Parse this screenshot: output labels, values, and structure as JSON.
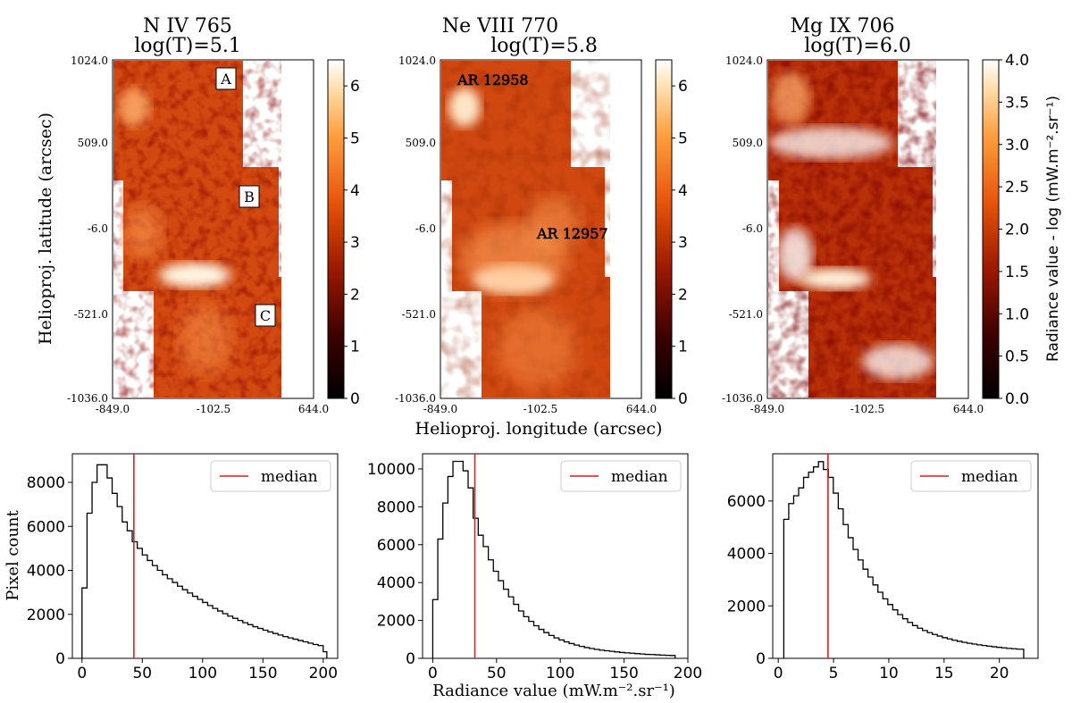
{
  "colorbar_label": "Radiance value - log (mW.m⁻².sr⁻¹)",
  "map_xlabel": "Helioproj. longitude (arcsec)",
  "map_ylabel": "Helioproj. latitude (arcsec)",
  "map_xticks": [
    "-849.0",
    "-102.5",
    "644.0"
  ],
  "map_yticks": [
    "1024.0",
    "509.0",
    "-6.0",
    "-521.0",
    "-1036.0"
  ],
  "hist_xlabel": "Radiance value (mW.m⁻².sr⁻¹)",
  "hist_ylabel": "Pixel count",
  "legend_label": "median",
  "colors": {
    "median_line": "#e41a1c",
    "hist_step": "#000000",
    "map_colormap": "gist_heat"
  },
  "panels": [
    {
      "title_line1": "N IV 765",
      "title_line2": "log(T)=5.1",
      "labels": [
        "A",
        "B",
        "C"
      ],
      "colorbar": {
        "ticks": [
          "0",
          "1",
          "2",
          "3",
          "4",
          "5",
          "6"
        ],
        "max": 6.5
      }
    },
    {
      "title_line1": "Ne VIII 770",
      "title_line2": "log(T)=5.8",
      "labels": [
        "AR 12958",
        "AR 12957"
      ],
      "colorbar": {
        "ticks": [
          "0",
          "1",
          "2",
          "3",
          "4",
          "5",
          "6"
        ],
        "max": 6.5
      }
    },
    {
      "title_line1": "Mg IX 706",
      "title_line2": "log(T)=6.0",
      "labels": [],
      "colorbar": {
        "ticks": [
          "0.0",
          "0.5",
          "1.0",
          "1.5",
          "2.0",
          "2.5",
          "3.0",
          "3.5",
          "4.0"
        ],
        "max": 4.0
      }
    }
  ],
  "chart_data": [
    {
      "type": "histogram",
      "title": "N IV 765",
      "xlabel": "",
      "ylabel": "Pixel count",
      "xlim": [
        -8,
        212
      ],
      "ylim": [
        0,
        9300
      ],
      "xticks": [
        0,
        50,
        100,
        150,
        200
      ],
      "yticks": [
        0,
        2000,
        4000,
        6000,
        8000
      ],
      "bin_edges": [
        0,
        4.167,
        8.333,
        12.5,
        16.667,
        20.833,
        25,
        29.167,
        33.333,
        37.5,
        41.667,
        45.833,
        50,
        54.167,
        58.333,
        62.5,
        66.667,
        70.833,
        75,
        79.167,
        83.333,
        87.5,
        91.667,
        95.833,
        100,
        104.167,
        108.333,
        112.5,
        116.667,
        120.833,
        125,
        129.167,
        133.333,
        137.5,
        141.667,
        145.833,
        150,
        154.167,
        158.333,
        162.5,
        166.667,
        170.833,
        175,
        179.167,
        183.333,
        187.5,
        191.667,
        195.833,
        200,
        203
      ],
      "counts": [
        3200,
        6600,
        8000,
        8800,
        8800,
        8200,
        7500,
        6900,
        6200,
        5800,
        5300,
        5000,
        4700,
        4450,
        4220,
        4000,
        3800,
        3620,
        3450,
        3280,
        3120,
        2970,
        2820,
        2680,
        2540,
        2400,
        2270,
        2150,
        2030,
        1920,
        1820,
        1720,
        1620,
        1530,
        1440,
        1360,
        1280,
        1200,
        1130,
        1060,
        990,
        930,
        870,
        810,
        750,
        690,
        630,
        580,
        300
      ],
      "median": 43,
      "legend": "median"
    },
    {
      "type": "histogram",
      "title": "Ne VIII 770",
      "xlabel": "Radiance value (mW.m⁻².sr⁻¹)",
      "ylabel": "",
      "xlim": [
        -8,
        200
      ],
      "ylim": [
        0,
        10800
      ],
      "xticks": [
        0,
        50,
        100,
        150,
        200
      ],
      "yticks": [
        0,
        2000,
        4000,
        6000,
        8000,
        10000
      ],
      "bin_edges": [
        0,
        3.96,
        7.92,
        11.88,
        15.84,
        19.8,
        23.76,
        27.72,
        31.68,
        35.64,
        39.6,
        43.56,
        47.52,
        51.48,
        55.44,
        59.4,
        63.36,
        67.32,
        71.28,
        75.24,
        79.2,
        83.16,
        87.12,
        91.08,
        95.04,
        99,
        102.96,
        106.92,
        110.88,
        114.84,
        118.8,
        122.76,
        126.72,
        130.68,
        134.64,
        138.6,
        142.56,
        146.52,
        150.48,
        154.44,
        158.4,
        162.36,
        166.32,
        170.28,
        174.24,
        178.2,
        182.16,
        186.12,
        190
      ],
      "counts": [
        3100,
        6300,
        8200,
        9600,
        10400,
        10400,
        9900,
        9000,
        7400,
        6500,
        5900,
        5200,
        4600,
        4100,
        3650,
        3250,
        2850,
        2500,
        2200,
        1950,
        1720,
        1530,
        1360,
        1210,
        1080,
        970,
        870,
        780,
        700,
        630,
        570,
        520,
        470,
        430,
        400,
        370,
        340,
        310,
        290,
        270,
        250,
        230,
        210,
        200,
        185,
        170,
        160,
        150
      ],
      "median": 33,
      "legend": "median"
    },
    {
      "type": "histogram",
      "title": "Mg IX 706",
      "xlabel": "",
      "ylabel": "",
      "xlim": [
        -0.5,
        23.5
      ],
      "ylim": [
        0,
        7800
      ],
      "xticks": [
        0,
        5,
        10,
        15,
        20
      ],
      "yticks": [
        0,
        2000,
        4000,
        6000
      ],
      "bin_edges": [
        0.5,
        0.948,
        1.396,
        1.844,
        2.292,
        2.74,
        3.188,
        3.636,
        4.084,
        4.532,
        4.98,
        5.428,
        5.876,
        6.324,
        6.772,
        7.22,
        7.668,
        8.116,
        8.564,
        9.012,
        9.46,
        9.908,
        10.356,
        10.804,
        11.252,
        11.7,
        12.148,
        12.596,
        13.044,
        13.492,
        13.94,
        14.388,
        14.836,
        15.284,
        15.732,
        16.18,
        16.628,
        17.076,
        17.524,
        17.972,
        18.42,
        18.868,
        19.316,
        19.764,
        20.212,
        20.66,
        21.108,
        21.556,
        22.2
      ],
      "counts": [
        5300,
        5900,
        6200,
        6500,
        6900,
        7100,
        7300,
        7500,
        7200,
        6900,
        6300,
        5700,
        5100,
        4600,
        4150,
        3750,
        3400,
        3100,
        2800,
        2520,
        2270,
        2050,
        1850,
        1670,
        1510,
        1370,
        1250,
        1150,
        1060,
        980,
        910,
        850,
        790,
        740,
        690,
        650,
        610,
        575,
        545,
        515,
        490,
        465,
        440,
        420,
        400,
        380,
        365,
        350
      ],
      "median": 4.5,
      "legend": "median"
    }
  ]
}
